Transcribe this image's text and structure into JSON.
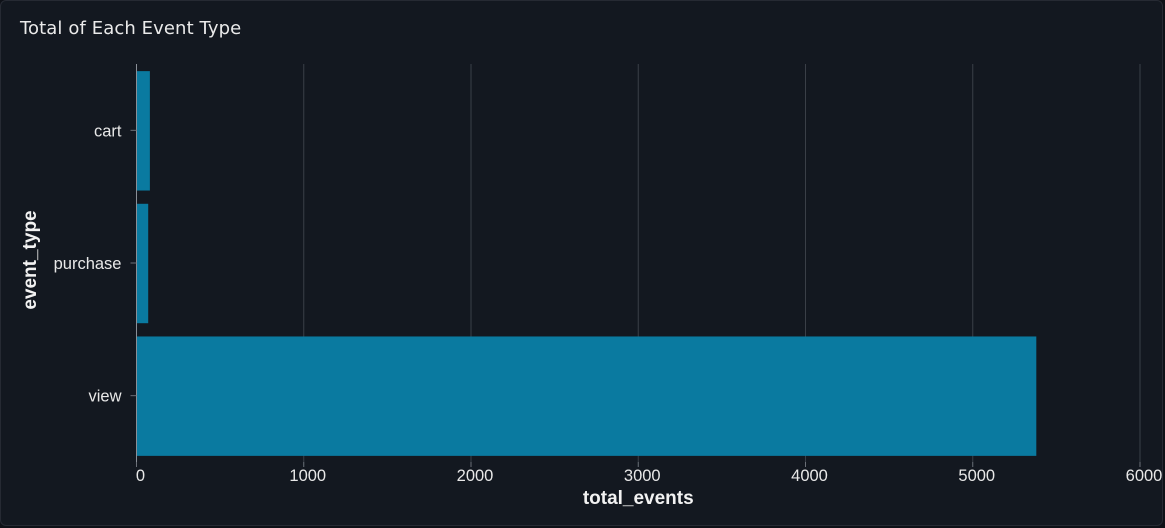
{
  "chart_data": {
    "type": "bar",
    "orientation": "horizontal",
    "title": "Total of Each Event Type",
    "xlabel": "total_events",
    "ylabel": "event_type",
    "categories": [
      "cart",
      "purchase",
      "view"
    ],
    "values": [
      80,
      70,
      5380
    ],
    "xlim": [
      0,
      6000
    ],
    "xticks": [
      0,
      1000,
      2000,
      3000,
      4000,
      5000,
      6000
    ],
    "grid": "vertical",
    "bar_color": "#0a7aa0",
    "background": "#131820",
    "grid_color": "#3a3f47"
  }
}
